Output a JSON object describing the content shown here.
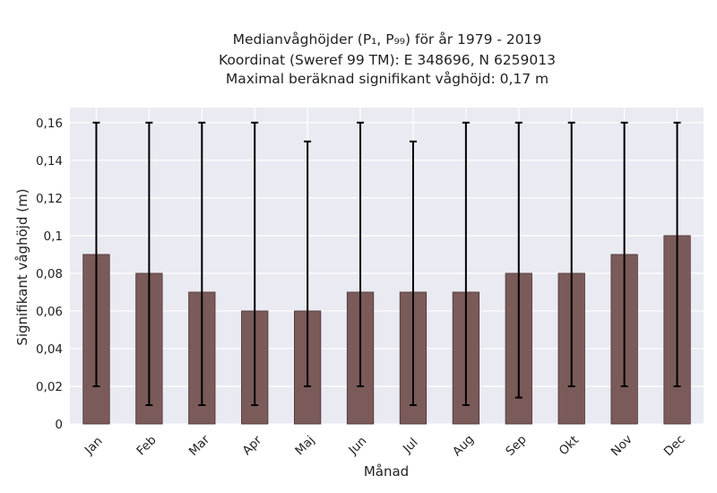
{
  "chart_data": {
    "type": "bar",
    "title_lines": [
      "Medianvåghöjder (P₁, P₉₉) för år 1979 - 2019",
      "Koordinat (Sweref 99 TM): E 348696, N 6259013",
      "Maximal beräknad signifikant våghöjd: 0,17 m"
    ],
    "xlabel": "Månad",
    "ylabel": "Signifikant våghöjd (m)",
    "categories": [
      "Jan",
      "Feb",
      "Mar",
      "Apr",
      "Maj",
      "Jun",
      "Jul",
      "Aug",
      "Sep",
      "Okt",
      "Nov",
      "Dec"
    ],
    "values": [
      0.09,
      0.08,
      0.07,
      0.06,
      0.06,
      0.07,
      0.07,
      0.07,
      0.08,
      0.08,
      0.09,
      0.1
    ],
    "error_low": [
      0.02,
      0.01,
      0.01,
      0.01,
      0.02,
      0.02,
      0.01,
      0.01,
      0.014,
      0.02,
      0.02,
      0.02
    ],
    "error_high": [
      0.16,
      0.16,
      0.16,
      0.16,
      0.15,
      0.16,
      0.15,
      0.16,
      0.16,
      0.16,
      0.16,
      0.16
    ],
    "yticks": [
      0,
      0.02,
      0.04,
      0.06,
      0.08,
      0.1,
      0.12,
      0.14,
      0.16
    ],
    "ytick_labels": [
      "0",
      "0,02",
      "0,04",
      "0,06",
      "0,08",
      "0,1",
      "0,12",
      "0,14",
      "0,16"
    ],
    "ylim": [
      0,
      0.168
    ],
    "grid": true,
    "bar_color": "#7b5a5a",
    "bar_edge_color": "#4a3434",
    "errorbar_color": "#000000",
    "background_color": "#eaeaf2"
  }
}
